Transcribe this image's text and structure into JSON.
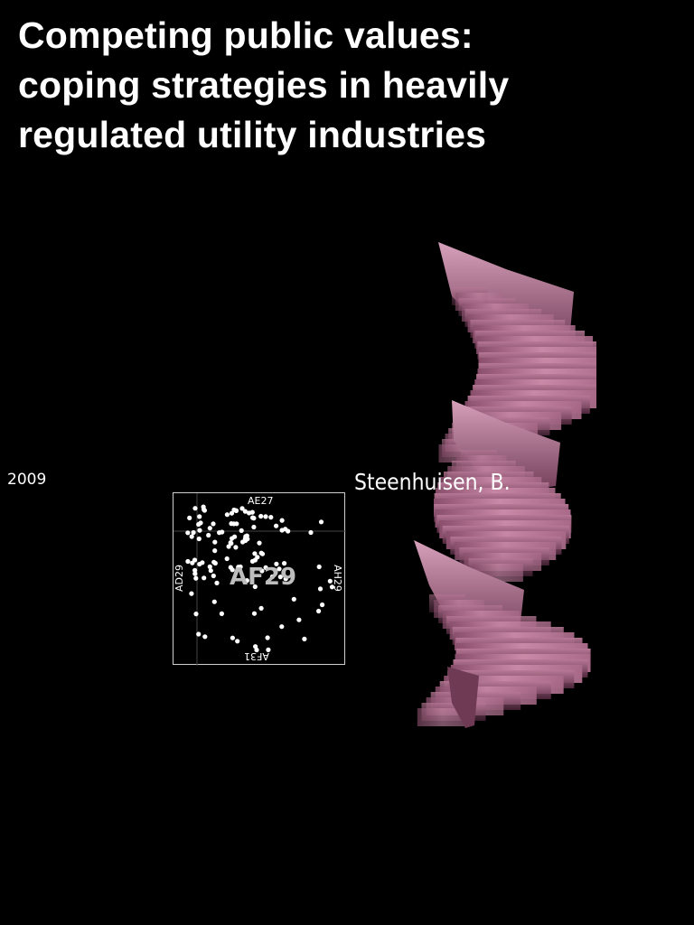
{
  "title": "Competing public values: coping strategies in heavily regulated utility industries",
  "year": "2009",
  "author": "Steenhuisen, B.",
  "cell": {
    "center": "AF29",
    "top": "AE27",
    "bottom": "AF31",
    "left": "AD29",
    "right": "AH29"
  },
  "colors": {
    "background": "#000000",
    "text": "#ffffff",
    "sculpture": "#c98aa8"
  }
}
